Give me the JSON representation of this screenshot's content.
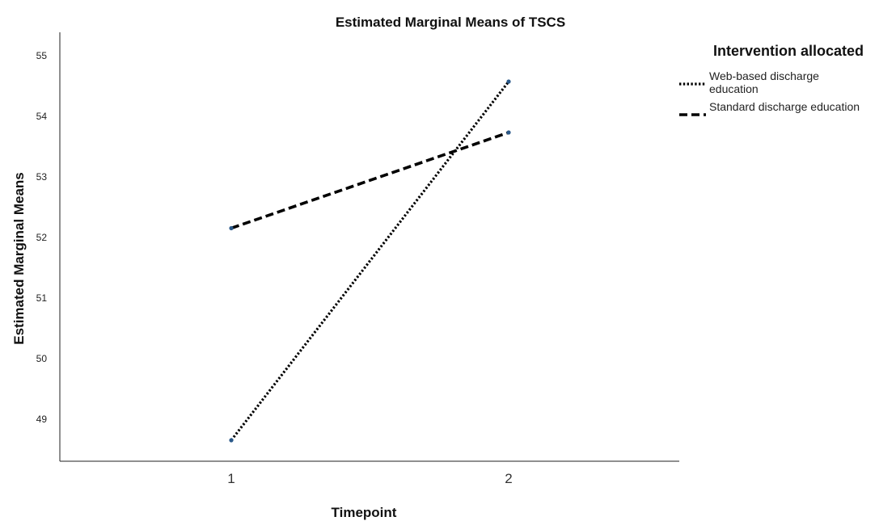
{
  "chart_data": {
    "type": "line",
    "title": "Estimated Marginal Means of TSCS",
    "xlabel": "Timepoint",
    "ylabel": "Estimated Marginal Means",
    "categories": [
      "1",
      "2"
    ],
    "y_ticks": [
      "49",
      "50",
      "51",
      "52",
      "53",
      "54",
      "55"
    ],
    "ylim": [
      48.3,
      55.4
    ],
    "legend": {
      "title": "Intervention allocated",
      "position": "top-right"
    },
    "series": [
      {
        "name": "Web-based discharge education",
        "name_lines": [
          "Web-based discharge",
          "education"
        ],
        "values": [
          48.65,
          54.57
        ],
        "line_style": "dotted",
        "color": "#000000"
      },
      {
        "name": "Standard discharge education",
        "name_lines": [
          "Standard discharge education"
        ],
        "values": [
          52.15,
          53.73
        ],
        "line_style": "dashed",
        "color": "#000000"
      }
    ],
    "marker_color": "#2b5a8a",
    "grid": false
  }
}
